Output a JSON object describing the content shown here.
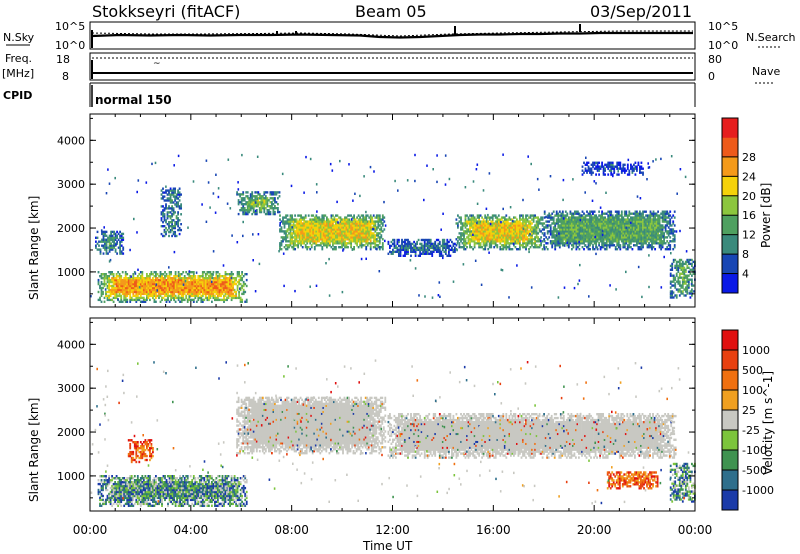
{
  "header": {
    "title": "Stokkseyri (fitACF)",
    "beam": "Beam 05",
    "date": "03/Sep/2011"
  },
  "strip_panels": {
    "nsky_label": "N.Sky",
    "nsky_ticks": [
      "10^5",
      "10^0"
    ],
    "nsearch_label": "N.Search",
    "nsearch_ticks": [
      "10^5",
      "10^0"
    ],
    "freq_label": "Freq.",
    "freq_unit": "[MHz]",
    "freq_ticks": [
      "18",
      "8"
    ],
    "nave_label": "Nave",
    "nave_ticks": [
      "80",
      "0"
    ],
    "cpid_label": "CPID",
    "cpid_value": "normal 150"
  },
  "chart_data": [
    {
      "type": "heatmap",
      "name": "power",
      "ylabel": "Slant Range [km]",
      "yticks": [
        "1000",
        "2000",
        "3000",
        "4000"
      ],
      "ylim": [
        200,
        4600
      ],
      "xlim_hours": [
        0,
        24
      ],
      "xticks": [
        "00:00",
        "04:00",
        "08:00",
        "12:00",
        "16:00",
        "20:00",
        "00:00"
      ],
      "colorbar": {
        "label": "Power [dB]",
        "ticks": [
          "4",
          "8",
          "12",
          "16",
          "20",
          "24",
          "28"
        ],
        "colors": [
          "#0a19e6",
          "#1846b4",
          "#3a8a7c",
          "#4fa060",
          "#8cc63e",
          "#f5d20a",
          "#f49a1a",
          "#ee5a1a",
          "#e61e1e"
        ]
      },
      "echo_regions": [
        {
          "t": [
            0.3,
            6.2
          ],
          "r": [
            300,
            1000
          ],
          "level": 6
        },
        {
          "t": [
            0.2,
            1.3
          ],
          "r": [
            1400,
            1900
          ],
          "level": 3
        },
        {
          "t": [
            2.8,
            3.6
          ],
          "r": [
            1800,
            2900
          ],
          "level": 3
        },
        {
          "t": [
            5.8,
            7.5
          ],
          "r": [
            2300,
            2800
          ],
          "level": 4
        },
        {
          "t": [
            7.5,
            11.7
          ],
          "r": [
            1500,
            2300
          ],
          "level": 5
        },
        {
          "t": [
            11.8,
            14.5
          ],
          "r": [
            1350,
            1750
          ],
          "level": 2
        },
        {
          "t": [
            14.5,
            18.0
          ],
          "r": [
            1500,
            2300
          ],
          "level": 5
        },
        {
          "t": [
            18.0,
            23.2
          ],
          "r": [
            1500,
            2400
          ],
          "level": 3
        },
        {
          "t": [
            19.5,
            22.0
          ],
          "r": [
            3200,
            3500
          ],
          "level": 1
        },
        {
          "t": [
            23.0,
            24.0
          ],
          "r": [
            400,
            1300
          ],
          "level": 4
        }
      ]
    },
    {
      "type": "heatmap",
      "name": "velocity",
      "ylabel": "Slant Range [km]",
      "yticks": [
        "1000",
        "2000",
        "3000",
        "4000"
      ],
      "ylim": [
        200,
        4600
      ],
      "xlim_hours": [
        0,
        24
      ],
      "xticks": [
        "00:00",
        "04:00",
        "08:00",
        "12:00",
        "16:00",
        "20:00",
        "00:00"
      ],
      "xlabel": "Time UT",
      "colorbar": {
        "label": "Velocity [m s^-1]",
        "ticks": [
          "1000",
          "500",
          "100",
          "25",
          "-25",
          "-100",
          "-500",
          "-1000"
        ],
        "colors": [
          "#1a3aa8",
          "#2f6f8c",
          "#3f9350",
          "#7cc43c",
          "#c8c8c2",
          "#f0a020",
          "#f07010",
          "#e84010",
          "#e01010"
        ]
      },
      "echo_regions": [
        {
          "t": [
            0.3,
            6.2
          ],
          "r": [
            300,
            1000
          ],
          "class": "toward"
        },
        {
          "t": [
            5.8,
            11.7
          ],
          "r": [
            1500,
            2800
          ],
          "class": "ground"
        },
        {
          "t": [
            11.8,
            23.2
          ],
          "r": [
            1400,
            2400
          ],
          "class": "ground"
        },
        {
          "t": [
            1.5,
            2.5
          ],
          "r": [
            1300,
            1800
          ],
          "class": "away"
        },
        {
          "t": [
            20.5,
            22.5
          ],
          "r": [
            700,
            1100
          ],
          "class": "away"
        },
        {
          "t": [
            23.0,
            24.0
          ],
          "r": [
            400,
            1300
          ],
          "class": "toward"
        }
      ]
    }
  ]
}
